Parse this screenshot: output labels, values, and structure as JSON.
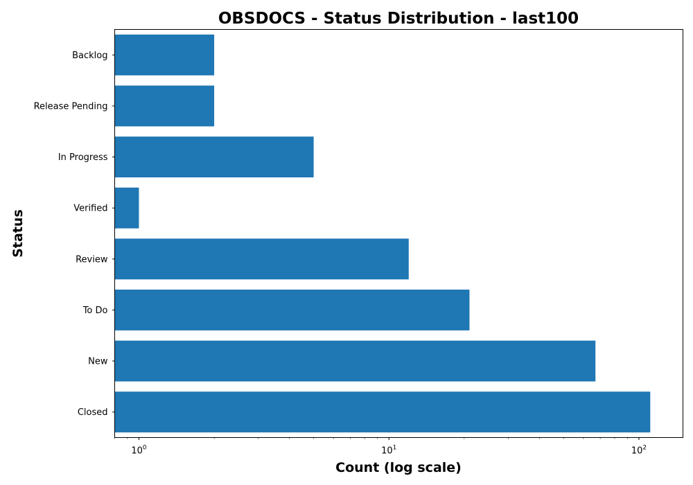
{
  "chart_data": {
    "type": "bar",
    "orientation": "horizontal",
    "title": "OBSDOCS - Status Distribution - last100",
    "xlabel": "Count (log scale)",
    "ylabel": "Status",
    "x_scale": "log",
    "xlim": [
      0.8,
      150
    ],
    "x_ticks": [
      1,
      10,
      100
    ],
    "x_tick_labels": [
      {
        "base": "10",
        "exp": "0"
      },
      {
        "base": "10",
        "exp": "1"
      },
      {
        "base": "10",
        "exp": "2"
      }
    ],
    "categories": [
      "Backlog",
      "Release Pending",
      "In Progress",
      "Verified",
      "Review",
      "To Do",
      "New",
      "Closed"
    ],
    "values": [
      2,
      2,
      5,
      1,
      12,
      21,
      67,
      111
    ],
    "bar_color": "#1f77b4",
    "grid": false,
    "legend": false
  }
}
